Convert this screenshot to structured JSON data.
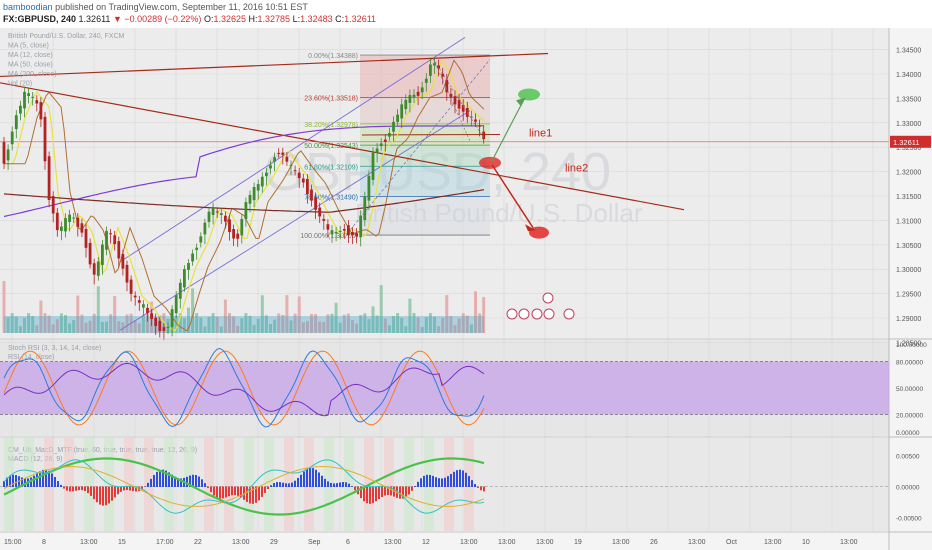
{
  "header": {
    "author": "bamboodian",
    "published_text": "published on TradingView.com, September 11, 2016 10:51 EST",
    "symbol": "FX:GBPUSD, 240",
    "last": "1.32611",
    "change": "−0.00289 (−0.22%)",
    "o_label": "O:",
    "o_value": "1.32625",
    "h_label": "H:",
    "h_value": "1.32785",
    "l_label": "L:",
    "l_value": "1.32483",
    "c_label": "C:",
    "c_value": "1.32611",
    "down_arrow": "▼"
  },
  "watermark": {
    "symbol": "GBPUSD, 240",
    "name": "British Pound/U.S. Dollar"
  },
  "legend_main": [
    "British Pound/U.S. Dollar, 240, FXCM",
    "MA (5, close)",
    "MA (12, close)",
    "MA (50, close)",
    "MA (200, close)",
    "Vol (20)"
  ],
  "annotations": {
    "line1": "line1",
    "line2": "line2"
  },
  "fib_levels": [
    {
      "label": "0.00%(1.34388)",
      "price": 1.34388
    },
    {
      "label": "23.60%(1.33518)",
      "price": 1.33518
    },
    {
      "label": "38.20%(1.32978)",
      "price": 1.32978
    },
    {
      "label": "50.00%(1.32543)",
      "price": 1.32543
    },
    {
      "label": "61.80%(1.32109)",
      "price": 1.32109
    },
    {
      "label": "78.60%(1.31490)",
      "price": 1.3149
    },
    {
      "label": "100.00%(1.30700)",
      "price": 1.307
    }
  ],
  "price_axis": [
    "1.34500",
    "1.34000",
    "1.33500",
    "1.33000",
    "1.32500",
    "1.32000",
    "1.31500",
    "1.31000",
    "1.30500",
    "1.30000",
    "1.29500",
    "1.29000",
    "1.28500"
  ],
  "price_axis_values": [
    1.345,
    1.34,
    1.335,
    1.33,
    1.325,
    1.32,
    1.315,
    1.31,
    1.305,
    1.3,
    1.295,
    1.29,
    1.285
  ],
  "last_price_tag": "1.32611",
  "last_price": 1.32611,
  "stoch_legend": [
    "Stoch RSI (3, 3, 14, 14, close)",
    "RSI (14, close)"
  ],
  "stoch_axis": [
    "100.00000",
    "80.00000",
    "50.00000",
    "20.00000",
    "0.00000"
  ],
  "stoch_axis_values": [
    100,
    80,
    50,
    20,
    0
  ],
  "macd_legend": [
    "CM_Ult_MacD_MTF (true, 60, true, true, true, true, 12, 26, 9)",
    "MACD (12, 26, 9)"
  ],
  "macd_axis": [
    "0.00500",
    "0.00000",
    "-0.00500"
  ],
  "macd_axis_values": [
    0.005,
    0,
    -0.005
  ],
  "time_axis": [
    "15:00",
    "8",
    "13:00",
    "15",
    "17:00",
    "22",
    "13:00",
    "29",
    "Sep",
    "6",
    "13:00",
    "12",
    "13:00",
    "13:00",
    "13:00",
    "19",
    "13:00",
    "26",
    "13:00",
    "Oct",
    "13:00",
    "10",
    "13:00"
  ],
  "colors": {
    "up": "#3d8b2e",
    "down": "#b22222",
    "ma5": "#e8e33a",
    "ma12": "#b07030",
    "ma50": "#7d3cd4",
    "ma200": "#7a2a22",
    "channel": "#7b6fd6",
    "trend": "#a52a1a",
    "stoch_k": "#2f7bd6",
    "stoch_d": "#ff7a1c",
    "rsi": "#7b2fc4",
    "band": "#c8a6e8",
    "accent_red": "#e21b1b",
    "accent_green": "#4ac24a"
  }
}
